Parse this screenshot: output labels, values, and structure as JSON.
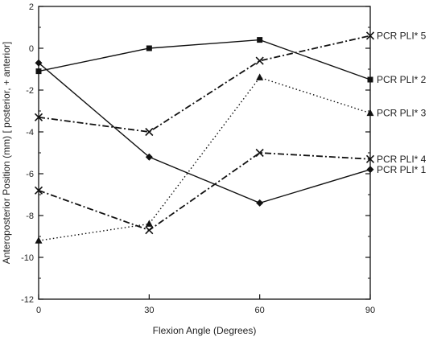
{
  "chart_data": {
    "type": "line",
    "x": [
      0,
      30,
      60,
      90
    ],
    "xlabel": "Flexion Angle (Degrees)",
    "ylabel": "Anteroposterior Position (mm) [ posterior, + anterior]",
    "xlim": [
      0,
      90
    ],
    "ylim": [
      -12,
      2
    ],
    "xticks": [
      "0",
      "30",
      "60",
      "90"
    ],
    "yticks": [
      "2",
      "0",
      "-2",
      "-4",
      "-6",
      "-8",
      "-10",
      "-12"
    ],
    "grid": false,
    "legend": "right (inline labels at line ends)",
    "series": [
      {
        "name": "PCR PLI* 5",
        "marker": "x",
        "style": "dash-dot",
        "values": [
          -3.3,
          -4.0,
          -0.6,
          0.6
        ]
      },
      {
        "name": "PCR PLI* 2",
        "marker": "square",
        "style": "solid",
        "values": [
          -1.1,
          0.0,
          0.4,
          -1.5
        ]
      },
      {
        "name": "PCR PLI* 3",
        "marker": "triangle",
        "style": "dotted",
        "values": [
          -9.2,
          -8.4,
          -1.4,
          -3.1
        ]
      },
      {
        "name": "PCR PLI* 4",
        "marker": "x",
        "style": "dash-dot",
        "values": [
          -6.8,
          -8.7,
          -5.0,
          -5.3
        ]
      },
      {
        "name": "PCR PLI* 1",
        "marker": "diamond",
        "style": "solid",
        "values": [
          -0.7,
          -5.2,
          -7.4,
          -5.8
        ]
      }
    ]
  }
}
